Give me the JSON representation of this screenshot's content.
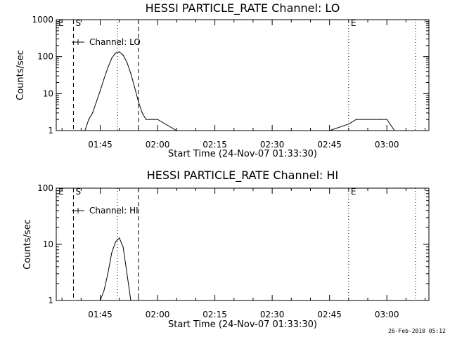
{
  "chart_data": [
    {
      "type": "line",
      "title": "HESSI PARTICLE_RATE Channel: LO",
      "xlabel": "Start Time (24-Nov-07 01:33:30)",
      "ylabel": "Counts/sec",
      "yscale": "log",
      "xlim": [
        "01:33:30",
        "03:11:00"
      ],
      "ylim": [
        1,
        1000
      ],
      "xticks": [
        "01:45",
        "02:00",
        "02:15",
        "02:30",
        "02:45",
        "03:00"
      ],
      "yticks": [
        "1",
        "10",
        "100",
        "1000"
      ],
      "legend": {
        "label": "Channel: LO",
        "placement": "top-left"
      },
      "markers": [
        {
          "label": "E",
          "time": "01:33:30",
          "style": "dotted"
        },
        {
          "label": "S",
          "time": "01:38:00",
          "style": "dashed"
        },
        {
          "label": "",
          "time": "01:49:30",
          "style": "dotted"
        },
        {
          "label": "",
          "time": "01:55:00",
          "style": "dashed"
        },
        {
          "label": "E",
          "time": "02:50:00",
          "style": "dotted"
        },
        {
          "label": "",
          "time": "03:07:30",
          "style": "dotted"
        }
      ],
      "x": [
        "01:38:00",
        "01:39:00",
        "01:40:00",
        "01:41:00",
        "01:42:00",
        "01:43:00",
        "01:44:00",
        "01:45:00",
        "01:46:00",
        "01:47:00",
        "01:48:00",
        "01:49:00",
        "01:50:00",
        "01:51:00",
        "01:52:00",
        "01:53:00",
        "01:54:00",
        "01:55:00",
        "01:56:00",
        "01:57:00",
        "01:58:00",
        "01:59:00",
        "02:00:00",
        "02:05:00",
        "02:10:00",
        "02:15:00",
        "02:20:00",
        "02:25:00",
        "02:30:00",
        "02:35:00",
        "02:40:00",
        "02:45:00",
        "02:50:00",
        "02:52:00",
        "02:55:00",
        "02:58:00",
        "03:00:00",
        "03:02:00",
        "03:05:00",
        "03:07:00"
      ],
      "values": [
        1,
        1,
        1,
        1,
        2,
        3,
        6,
        12,
        25,
        50,
        90,
        125,
        135,
        110,
        70,
        35,
        15,
        6,
        3,
        2,
        2,
        2,
        2,
        1,
        1,
        1,
        1,
        1,
        1,
        1,
        1,
        1,
        1.5,
        2,
        2,
        2,
        2,
        1,
        1,
        1
      ]
    },
    {
      "type": "line",
      "title": "HESSI PARTICLE_RATE Channel: HI",
      "xlabel": "Start Time (24-Nov-07 01:33:30)",
      "ylabel": "Counts/sec",
      "yscale": "log",
      "xlim": [
        "01:33:30",
        "03:11:00"
      ],
      "ylim": [
        1,
        100
      ],
      "xticks": [
        "01:45",
        "02:00",
        "02:15",
        "02:30",
        "02:45",
        "03:00"
      ],
      "yticks": [
        "1",
        "10",
        "100"
      ],
      "legend": {
        "label": "Channel: HI",
        "placement": "top-left"
      },
      "markers": [
        {
          "label": "E",
          "time": "01:33:30",
          "style": "dotted"
        },
        {
          "label": "S",
          "time": "01:38:00",
          "style": "dashed"
        },
        {
          "label": "",
          "time": "01:49:30",
          "style": "dotted"
        },
        {
          "label": "",
          "time": "01:55:00",
          "style": "dashed"
        },
        {
          "label": "E",
          "time": "02:50:00",
          "style": "dotted"
        },
        {
          "label": "",
          "time": "03:07:30",
          "style": "dotted"
        }
      ],
      "x": [
        "01:45:00",
        "01:46:00",
        "01:47:00",
        "01:48:00",
        "01:49:00",
        "01:50:00",
        "01:51:00",
        "01:52:00",
        "01:53:00"
      ],
      "values": [
        1,
        1.5,
        3,
        7,
        11,
        13,
        9,
        3,
        1
      ]
    }
  ],
  "footer": {
    "date_stamp": "26-Feb-2010 05:12"
  }
}
